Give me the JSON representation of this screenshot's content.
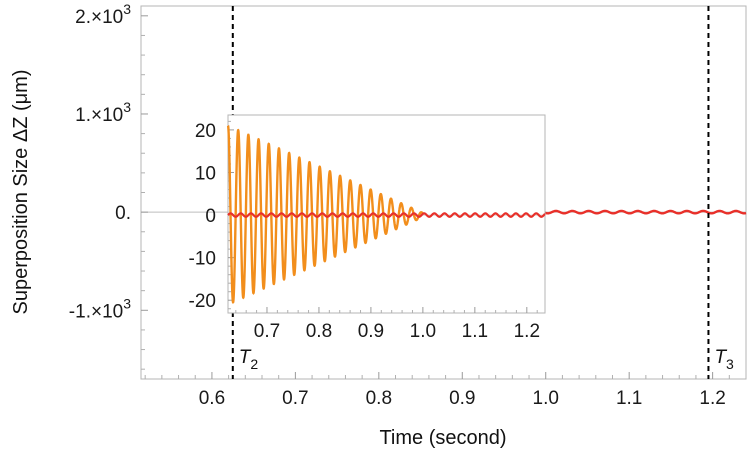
{
  "chart_data": {
    "type": "line",
    "xlabel": "Time (second)",
    "ylabel": "Superposition Size ΔZ (μm)",
    "xlim": [
      0.515,
      1.24
    ],
    "ylim": [
      -1700,
      2100
    ],
    "x_ticks": [
      {
        "value": 0.6,
        "label": "0.6"
      },
      {
        "value": 0.7,
        "label": "0.7"
      },
      {
        "value": 0.8,
        "label": "0.8"
      },
      {
        "value": 0.9,
        "label": "0.9"
      },
      {
        "value": 1.0,
        "label": "1.0"
      },
      {
        "value": 1.1,
        "label": "1.1"
      },
      {
        "value": 1.2,
        "label": "1.2"
      }
    ],
    "y_ticks": [
      {
        "value": 2000,
        "base": "2.×10",
        "exp": "3"
      },
      {
        "value": 1000,
        "base": "1.×10",
        "exp": "3"
      },
      {
        "value": 0,
        "base": "0.",
        "exp": ""
      },
      {
        "value": -1000,
        "base": "-1.×10",
        "exp": "3"
      }
    ],
    "markers": [
      {
        "x": 0.625,
        "label": "T",
        "sub": "2"
      },
      {
        "x": 1.195,
        "label": "T",
        "sub": "3"
      }
    ],
    "main_series": {
      "color": "#e8302a",
      "x_start": 0.625,
      "x_end": 1.24,
      "amplitude": 1.2,
      "frequency_hz": 51
    },
    "inset": {
      "xlim": [
        0.625,
        1.235
      ],
      "ylim": [
        -23,
        23.5
      ],
      "x_ticks": [
        {
          "value": 0.7,
          "label": "0.7"
        },
        {
          "value": 0.8,
          "label": "0.8"
        },
        {
          "value": 0.9,
          "label": "0.9"
        },
        {
          "value": 1.0,
          "label": "1.0"
        },
        {
          "value": 1.1,
          "label": "1.1"
        },
        {
          "value": 1.2,
          "label": "1.2"
        }
      ],
      "y_ticks": [
        {
          "value": 20,
          "label": "20"
        },
        {
          "value": 10,
          "label": "10"
        },
        {
          "value": 0,
          "label": "0"
        },
        {
          "value": -10,
          "label": "-10"
        },
        {
          "value": -20,
          "label": "-20"
        }
      ],
      "series": [
        {
          "color": "#f28e1c",
          "x_start": 0.625,
          "x_end": 1.0,
          "amplitude_start": 21,
          "amplitude_end": 0.5,
          "frequency_hz": 51
        },
        {
          "color": "#e8302a",
          "x_start": 0.625,
          "x_end": 1.235,
          "amplitude": 0.4,
          "frequency_hz": 51
        }
      ]
    }
  }
}
